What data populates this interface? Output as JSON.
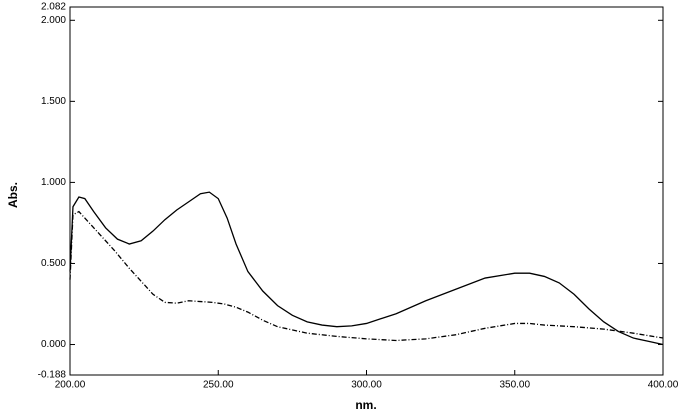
{
  "chart_data": {
    "type": "line",
    "x_label": "nm.",
    "y_label": "Abs.",
    "xlim": [
      200,
      400
    ],
    "xticks": [
      {
        "value": 200,
        "label": "200.00"
      },
      {
        "value": 250,
        "label": "250.00"
      },
      {
        "value": 300,
        "label": "300.00"
      },
      {
        "value": 350,
        "label": "350.00"
      },
      {
        "value": 400,
        "label": "400.00"
      }
    ],
    "ylim": [
      -0.188,
      2.082
    ],
    "yticks": [
      -0.188,
      {
        "value": 0,
        "label": "0.000"
      },
      {
        "value": 0.5,
        "label": "0.500"
      },
      {
        "value": 1,
        "label": "1.000"
      },
      {
        "value": 1.5,
        "label": "1.500"
      },
      {
        "value": 2,
        "label": "2.000"
      },
      2.082
    ],
    "series": [
      {
        "color": "#000000",
        "dash": "solid",
        "x": [
          200,
          201,
          202,
          203,
          205,
          208,
          212,
          216,
          220,
          224,
          228,
          232,
          236,
          240,
          244,
          247,
          250,
          253,
          256,
          260,
          265,
          270,
          275,
          280,
          285,
          290,
          295,
          300,
          310,
          320,
          330,
          340,
          350,
          355,
          360,
          365,
          370,
          375,
          380,
          385,
          390,
          395,
          400
        ],
        "values": [
          0.45,
          0.85,
          0.88,
          0.91,
          0.9,
          0.82,
          0.72,
          0.65,
          0.62,
          0.64,
          0.7,
          0.77,
          0.83,
          0.88,
          0.93,
          0.94,
          0.9,
          0.78,
          0.62,
          0.45,
          0.33,
          0.24,
          0.18,
          0.14,
          0.12,
          0.11,
          0.115,
          0.13,
          0.19,
          0.27,
          0.34,
          0.41,
          0.44,
          0.44,
          0.42,
          0.38,
          0.31,
          0.22,
          0.14,
          0.08,
          0.04,
          0.02,
          0.0
        ]
      },
      {
        "color": "#000000",
        "dash": "dashdot",
        "x": [
          200,
          201,
          203,
          205,
          210,
          215,
          220,
          225,
          228,
          232,
          236,
          240,
          244,
          248,
          252,
          256,
          260,
          265,
          270,
          280,
          290,
          300,
          310,
          320,
          330,
          340,
          350,
          355,
          360,
          370,
          380,
          390,
          400
        ],
        "values": [
          0.4,
          0.8,
          0.82,
          0.78,
          0.68,
          0.58,
          0.47,
          0.37,
          0.31,
          0.26,
          0.255,
          0.27,
          0.265,
          0.26,
          0.25,
          0.23,
          0.2,
          0.15,
          0.11,
          0.07,
          0.05,
          0.035,
          0.025,
          0.035,
          0.06,
          0.1,
          0.13,
          0.13,
          0.12,
          0.11,
          0.095,
          0.07,
          0.04
        ]
      }
    ]
  }
}
